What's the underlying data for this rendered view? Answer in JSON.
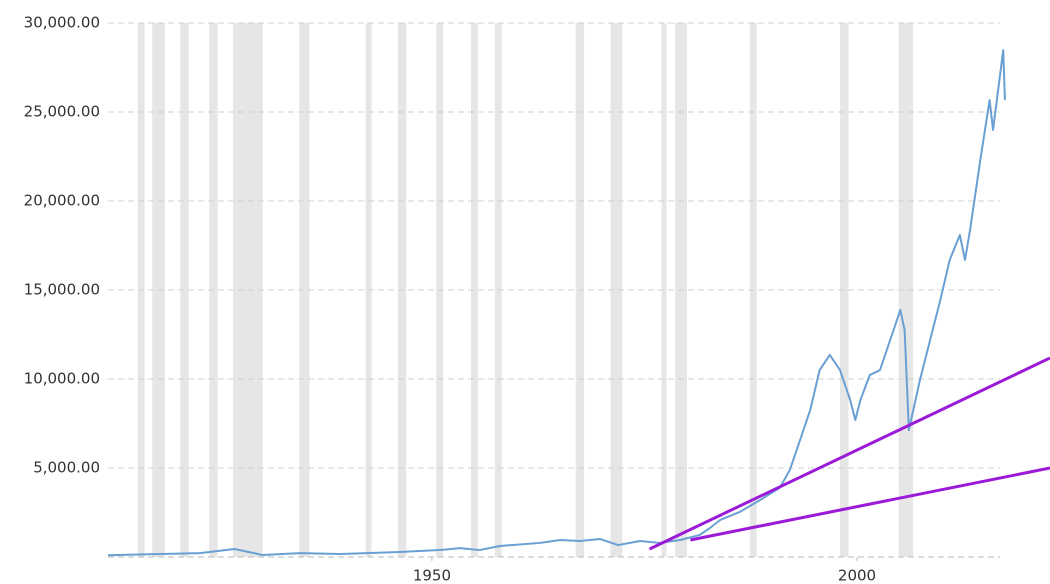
{
  "chart_data": {
    "type": "line",
    "xlim": [
      1911.9,
      2022.7
    ],
    "xticks": [
      1950,
      2000
    ],
    "ylim": [
      0,
      30000
    ],
    "yticks": [
      {
        "value": 5000,
        "label": "5,000.00"
      },
      {
        "value": 10000,
        "label": "10,000.00"
      },
      {
        "value": 15000,
        "label": "15,000.00"
      },
      {
        "value": 20000,
        "label": "20,000.00"
      },
      {
        "value": 25000,
        "label": "25,000.00"
      },
      {
        "value": 30000,
        "label": "30,000.00"
      }
    ],
    "grid": true,
    "shade_color": "#e6e6e6",
    "shaded_ranges": [
      [
        1915.4,
        1916.2
      ],
      [
        1917.1,
        1918.6
      ],
      [
        1920.4,
        1921.4
      ],
      [
        1923.8,
        1924.8
      ],
      [
        1926.6,
        1930.1
      ],
      [
        1934.4,
        1935.6
      ],
      [
        1942.2,
        1942.9
      ],
      [
        1946.0,
        1947.0
      ],
      [
        1950.5,
        1951.3
      ],
      [
        1954.6,
        1955.4
      ],
      [
        1957.4,
        1958.2
      ],
      [
        1966.9,
        1967.9
      ],
      [
        1971.0,
        1972.4
      ],
      [
        1977.0,
        1977.6
      ],
      [
        1978.6,
        1980.0
      ],
      [
        1987.4,
        1988.2
      ],
      [
        1998.0,
        1999.0
      ],
      [
        2004.9,
        2006.6
      ]
    ],
    "x": [
      1911.9,
      1922.7,
      1926.8,
      1930.1,
      1934.5,
      1939.2,
      1946.2,
      1950.9,
      1953.3,
      1955.6,
      1958.0,
      1962.7,
      1965.1,
      1967.4,
      1969.8,
      1971.9,
      1974.5,
      1976.8,
      1979.2,
      1981.5,
      1982.7,
      1983.9,
      1986.2,
      1988.6,
      1990.9,
      1992.1,
      1993.3,
      1994.5,
      1995.6,
      1996.8,
      1998.0,
      1999.2,
      1999.8,
      2000.4,
      2001.5,
      2002.7,
      2003.9,
      2005.1,
      2005.6,
      2006.1,
      2007.4,
      2008.6,
      2009.8,
      2010.9,
      2012.1,
      2012.7,
      2013.3,
      2014.5,
      2015.6,
      2016.0,
      2016.6,
      2017.2,
      2017.4
    ],
    "series": [
      {
        "color": "#6a9fd4",
        "values": [
          100,
          220,
          450,
          110,
          220,
          170,
          280,
          390,
          500,
          390,
          620,
          790,
          955,
          900,
          1010,
          670,
          900,
          790,
          955,
          1240,
          1630,
          2080,
          2530,
          3200,
          3880,
          4890,
          6570,
          8260,
          10500,
          11350,
          10500,
          8820,
          7700,
          8820,
          10220,
          10500,
          12190,
          13880,
          12750,
          7130,
          9940,
          12190,
          14440,
          16690,
          18090,
          16690,
          18370,
          22300,
          25670,
          23990,
          26240,
          28480,
          25670
        ]
      }
    ],
    "trend_lines": [
      {
        "color": "#9a1ad8",
        "x": [
          1975.6,
          2022.7
        ],
        "values": [
          450,
          11180
        ]
      },
      {
        "color": "#9a1ad8",
        "x": [
          1980.4,
          2022.7
        ],
        "values": [
          955,
          5000
        ]
      }
    ]
  }
}
